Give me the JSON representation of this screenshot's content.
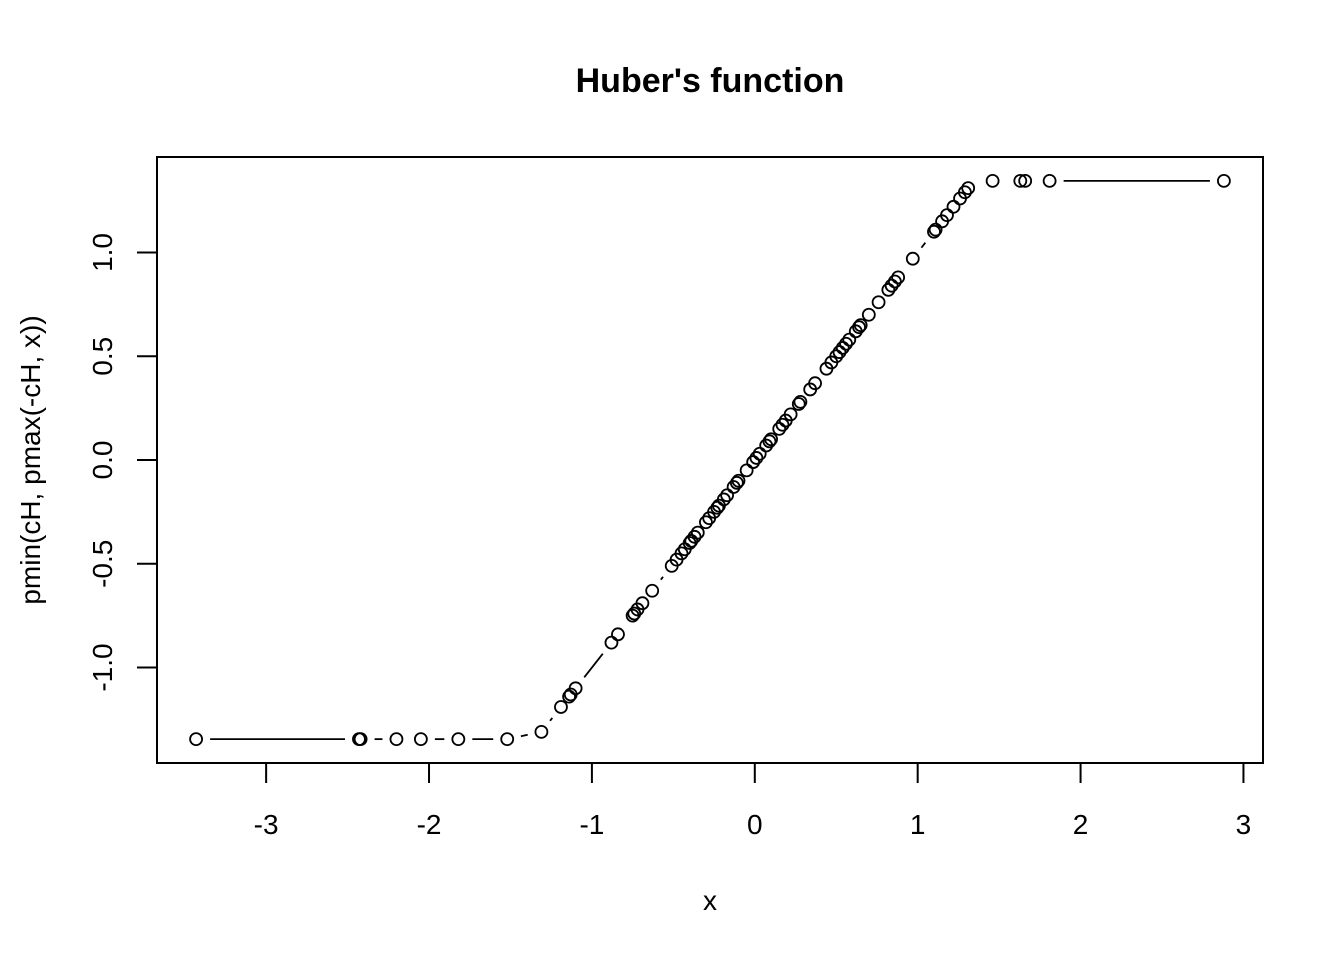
{
  "chart_data": {
    "type": "scatter",
    "plot_type": "b",
    "title": "Huber's function",
    "xlabel": "x",
    "ylabel": "pmin(cH, pmax(-cH, x))",
    "x_ticks": [
      -3,
      -2,
      -1,
      0,
      1,
      2,
      3
    ],
    "x_tick_labels": [
      "-3",
      "-2",
      "-1",
      "0",
      "1",
      "2",
      "3"
    ],
    "y_ticks": [
      -1.0,
      -0.5,
      0.0,
      0.5,
      1.0
    ],
    "y_tick_labels": [
      "-1.0",
      "-0.5",
      "0.0",
      "0.5",
      "1.0"
    ],
    "xlim": [
      -3.67,
      3.12
    ],
    "ylim": [
      -1.46,
      1.46
    ],
    "cH": 1.345,
    "x": [
      -3.43,
      -2.43,
      -2.42,
      -2.2,
      -2.05,
      -1.82,
      -1.52,
      -1.31,
      -1.19,
      -1.14,
      -1.13,
      -1.1,
      -0.88,
      -0.84,
      -0.75,
      -0.74,
      -0.72,
      -0.69,
      -0.63,
      -0.51,
      -0.48,
      -0.45,
      -0.43,
      -0.4,
      -0.39,
      -0.37,
      -0.35,
      -0.3,
      -0.28,
      -0.25,
      -0.23,
      -0.22,
      -0.19,
      -0.17,
      -0.13,
      -0.11,
      -0.1,
      -0.05,
      -0.01,
      0.01,
      0.03,
      0.07,
      0.09,
      0.1,
      0.15,
      0.17,
      0.19,
      0.22,
      0.27,
      0.28,
      0.34,
      0.37,
      0.44,
      0.47,
      0.5,
      0.52,
      0.54,
      0.56,
      0.58,
      0.62,
      0.64,
      0.65,
      0.7,
      0.76,
      0.82,
      0.84,
      0.86,
      0.88,
      0.97,
      1.1,
      1.11,
      1.15,
      1.18,
      1.22,
      1.26,
      1.29,
      1.31,
      1.46,
      1.63,
      1.66,
      1.81,
      2.88
    ],
    "y": [
      -1.345,
      -1.345,
      -1.345,
      -1.345,
      -1.345,
      -1.345,
      -1.345,
      -1.31,
      -1.19,
      -1.14,
      -1.13,
      -1.1,
      -0.88,
      -0.84,
      -0.75,
      -0.74,
      -0.72,
      -0.69,
      -0.63,
      -0.51,
      -0.48,
      -0.45,
      -0.43,
      -0.4,
      -0.39,
      -0.37,
      -0.35,
      -0.3,
      -0.28,
      -0.25,
      -0.23,
      -0.22,
      -0.19,
      -0.17,
      -0.13,
      -0.11,
      -0.1,
      -0.05,
      -0.01,
      0.01,
      0.03,
      0.07,
      0.09,
      0.1,
      0.15,
      0.17,
      0.19,
      0.22,
      0.27,
      0.28,
      0.34,
      0.37,
      0.44,
      0.47,
      0.5,
      0.52,
      0.54,
      0.56,
      0.58,
      0.62,
      0.64,
      0.65,
      0.7,
      0.76,
      0.82,
      0.84,
      0.86,
      0.88,
      0.97,
      1.1,
      1.11,
      1.15,
      1.18,
      1.22,
      1.26,
      1.29,
      1.31,
      1.345,
      1.345,
      1.345,
      1.345,
      1.345
    ],
    "grid": false,
    "legend": "none",
    "colors": {
      "points": "#000000",
      "lines": "#000000",
      "background": "#ffffff"
    }
  }
}
